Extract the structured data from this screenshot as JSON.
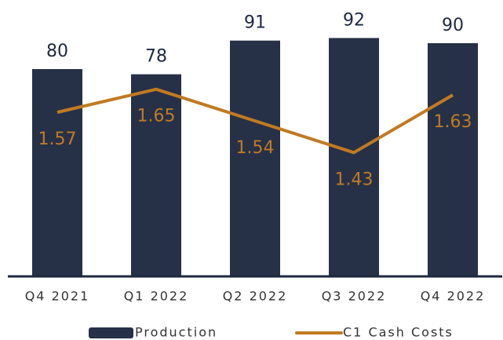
{
  "chart_data": {
    "type": "bar-line",
    "categories": [
      "Q4 2021",
      "Q1 2022",
      "Q2 2022",
      "Q3 2022",
      "Q4 2022"
    ],
    "series": [
      {
        "name": "Production",
        "type": "bar",
        "color": "#263147",
        "values": [
          80,
          78,
          91,
          92,
          90
        ]
      },
      {
        "name": "C1 Cash Costs",
        "type": "line",
        "axis": "y2",
        "color": "#c17a22",
        "values": [
          1.57,
          1.65,
          1.54,
          1.43,
          1.63
        ]
      }
    ],
    "ylim": [
      0,
      100
    ],
    "y2lim": [
      1.0,
      1.9
    ],
    "legend": "bottom"
  }
}
